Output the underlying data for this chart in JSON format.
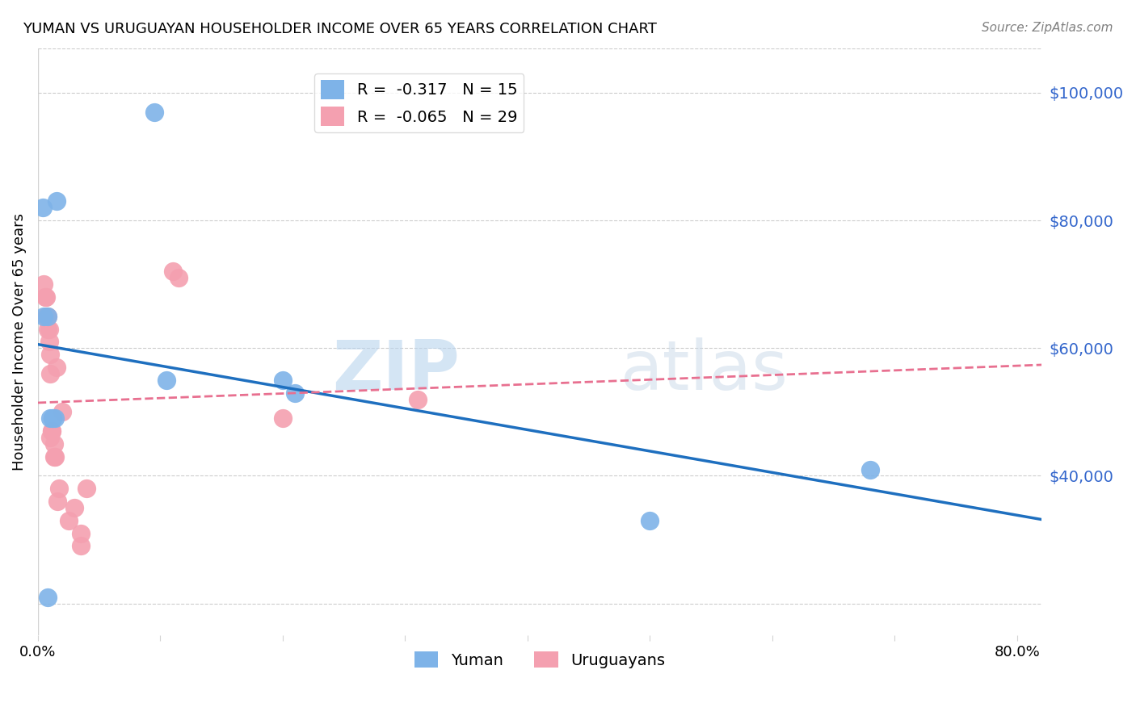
{
  "title": "YUMAN VS URUGUAYAN HOUSEHOLDER INCOME OVER 65 YEARS CORRELATION CHART",
  "source": "Source: ZipAtlas.com",
  "ylabel": "Householder Income Over 65 years",
  "legend_yuman": {
    "R": "-0.317",
    "N": "15"
  },
  "legend_uruguayan": {
    "R": "-0.065",
    "N": "29"
  },
  "yuman_color": "#7EB3E8",
  "uruguayan_color": "#F4A0B0",
  "yuman_line_color": "#1E6FBF",
  "uruguayan_line_color": "#E87090",
  "right_axis_color": "#3366CC",
  "watermark_zip": "ZIP",
  "watermark_atlas": "atlas",
  "ylim": [
    15000,
    107000
  ],
  "xlim": [
    0.0,
    0.82
  ],
  "yticks": [
    20000,
    40000,
    60000,
    80000,
    100000
  ],
  "ytick_labels": [
    "",
    "$40,000",
    "$60,000",
    "$80,000",
    "$100,000"
  ],
  "xticks": [
    0.0,
    0.1,
    0.2,
    0.3,
    0.4,
    0.5,
    0.6,
    0.7,
    0.8
  ],
  "xtick_labels": [
    "0.0%",
    "",
    "",
    "",
    "",
    "",
    "",
    "",
    "80.0%"
  ],
  "yuman_x": [
    0.004,
    0.015,
    0.095,
    0.105,
    0.005,
    0.008,
    0.01,
    0.012,
    0.012,
    0.014,
    0.2,
    0.21,
    0.5,
    0.68,
    0.008
  ],
  "yuman_y": [
    82000,
    83000,
    97000,
    55000,
    65000,
    65000,
    49000,
    49000,
    49000,
    49000,
    55000,
    53000,
    33000,
    41000,
    21000
  ],
  "uruguayan_x": [
    0.11,
    0.005,
    0.006,
    0.007,
    0.007,
    0.008,
    0.008,
    0.009,
    0.009,
    0.01,
    0.01,
    0.01,
    0.011,
    0.011,
    0.013,
    0.013,
    0.014,
    0.015,
    0.016,
    0.017,
    0.02,
    0.025,
    0.03,
    0.115,
    0.2,
    0.31,
    0.035,
    0.035,
    0.04
  ],
  "uruguayan_y": [
    72000,
    70000,
    68000,
    68000,
    65000,
    65000,
    63000,
    63000,
    61000,
    59000,
    56000,
    46000,
    47000,
    47000,
    45000,
    43000,
    43000,
    57000,
    36000,
    38000,
    50000,
    33000,
    35000,
    71000,
    49000,
    52000,
    29000,
    31000,
    38000
  ],
  "background_color": "#FFFFFF",
  "grid_color": "#CCCCCC"
}
